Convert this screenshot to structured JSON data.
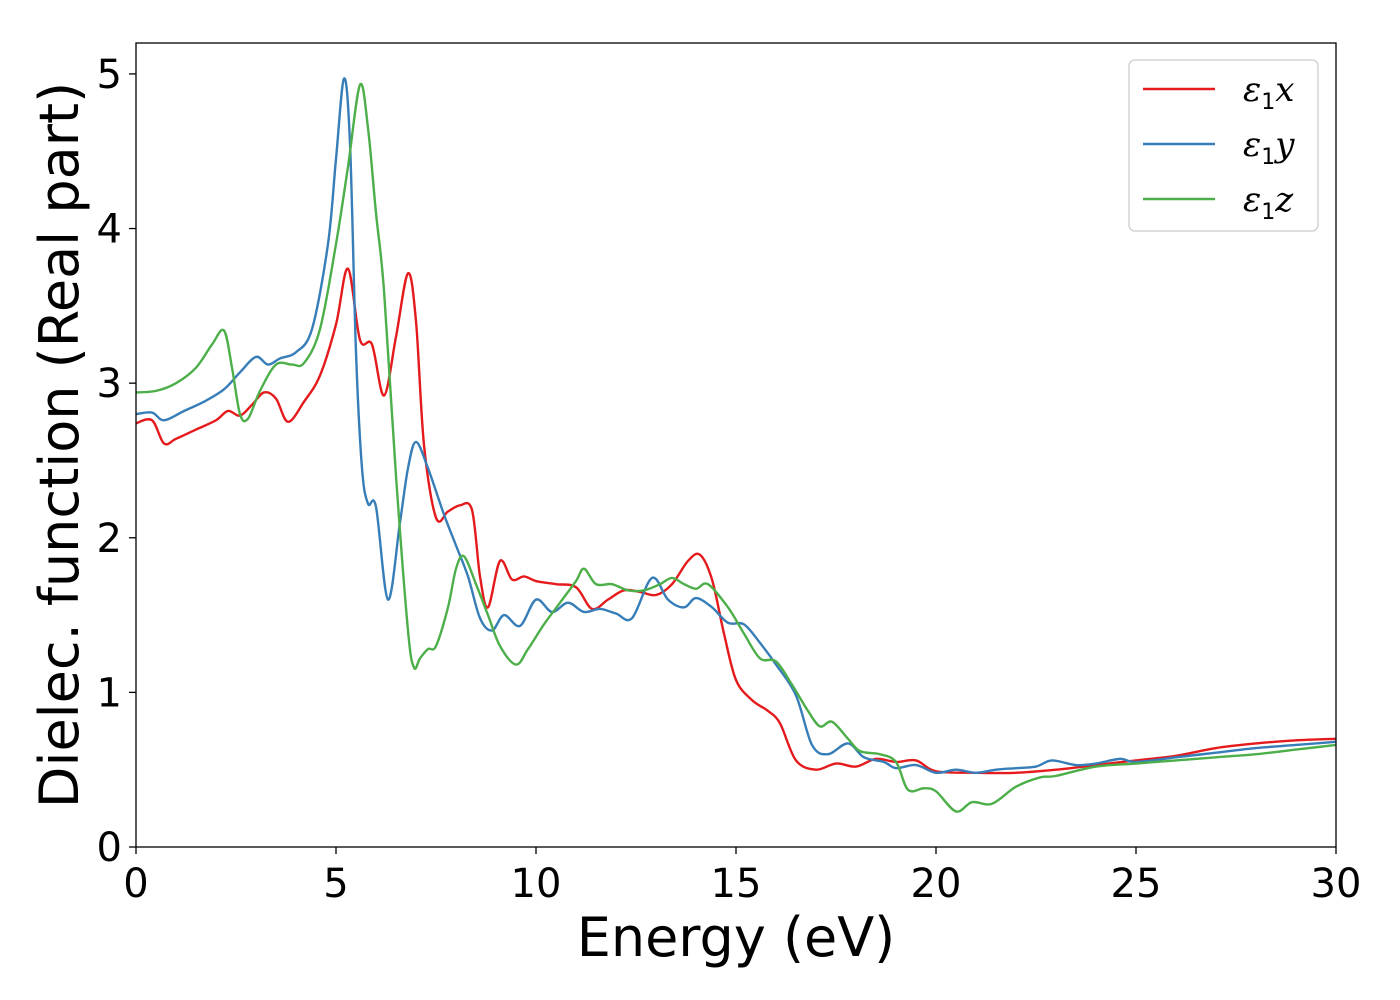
{
  "chart_data": {
    "type": "line",
    "title": "",
    "xlabel": "Energy (eV)",
    "ylabel": "Dielec. function (Real part)",
    "xlim": [
      0,
      30
    ],
    "ylim": [
      0,
      5.2
    ],
    "xticks": [
      0,
      5,
      10,
      15,
      20,
      25,
      30
    ],
    "yticks": [
      0,
      1,
      2,
      3,
      4,
      5
    ],
    "grid": false,
    "legend_position": "top-right",
    "series": [
      {
        "name": "ε1x",
        "legend_main": "ε",
        "legend_sub": "1",
        "legend_tail": "x",
        "color": "#e41a1c",
        "points": [
          [
            0,
            2.74
          ],
          [
            0.4,
            2.76
          ],
          [
            0.7,
            2.61
          ],
          [
            1.0,
            2.64
          ],
          [
            1.5,
            2.7
          ],
          [
            2.0,
            2.76
          ],
          [
            2.3,
            2.82
          ],
          [
            2.6,
            2.79
          ],
          [
            2.9,
            2.86
          ],
          [
            3.2,
            2.94
          ],
          [
            3.5,
            2.9
          ],
          [
            3.8,
            2.75
          ],
          [
            4.2,
            2.88
          ],
          [
            4.6,
            3.05
          ],
          [
            5.0,
            3.38
          ],
          [
            5.3,
            3.74
          ],
          [
            5.6,
            3.28
          ],
          [
            5.9,
            3.25
          ],
          [
            6.2,
            2.92
          ],
          [
            6.5,
            3.3
          ],
          [
            6.8,
            3.71
          ],
          [
            7.0,
            3.4
          ],
          [
            7.2,
            2.6
          ],
          [
            7.5,
            2.13
          ],
          [
            7.8,
            2.17
          ],
          [
            8.1,
            2.21
          ],
          [
            8.4,
            2.18
          ],
          [
            8.6,
            1.75
          ],
          [
            8.8,
            1.55
          ],
          [
            9.1,
            1.85
          ],
          [
            9.4,
            1.73
          ],
          [
            9.7,
            1.75
          ],
          [
            10.0,
            1.72
          ],
          [
            10.5,
            1.7
          ],
          [
            11.0,
            1.68
          ],
          [
            11.4,
            1.54
          ],
          [
            11.8,
            1.6
          ],
          [
            12.2,
            1.66
          ],
          [
            12.6,
            1.65
          ],
          [
            13.0,
            1.63
          ],
          [
            13.4,
            1.7
          ],
          [
            13.8,
            1.85
          ],
          [
            14.1,
            1.89
          ],
          [
            14.4,
            1.73
          ],
          [
            14.7,
            1.38
          ],
          [
            15.0,
            1.08
          ],
          [
            15.4,
            0.95
          ],
          [
            15.8,
            0.88
          ],
          [
            16.1,
            0.8
          ],
          [
            16.5,
            0.56
          ],
          [
            17.0,
            0.5
          ],
          [
            17.5,
            0.54
          ],
          [
            18.0,
            0.52
          ],
          [
            18.5,
            0.57
          ],
          [
            19.0,
            0.55
          ],
          [
            19.5,
            0.56
          ],
          [
            20.0,
            0.49
          ],
          [
            21.0,
            0.48
          ],
          [
            22.0,
            0.48
          ],
          [
            23.0,
            0.5
          ],
          [
            24.0,
            0.53
          ],
          [
            25.0,
            0.56
          ],
          [
            26.0,
            0.59
          ],
          [
            27.0,
            0.64
          ],
          [
            28.0,
            0.67
          ],
          [
            29.0,
            0.69
          ],
          [
            30.0,
            0.7
          ]
        ]
      },
      {
        "name": "ε1y",
        "legend_main": "ε",
        "legend_sub": "1",
        "legend_tail": "y",
        "color": "#377eb8",
        "points": [
          [
            0,
            2.8
          ],
          [
            0.4,
            2.81
          ],
          [
            0.7,
            2.76
          ],
          [
            1.2,
            2.82
          ],
          [
            1.7,
            2.88
          ],
          [
            2.2,
            2.96
          ],
          [
            2.6,
            3.07
          ],
          [
            3.0,
            3.17
          ],
          [
            3.3,
            3.12
          ],
          [
            3.6,
            3.16
          ],
          [
            4.0,
            3.2
          ],
          [
            4.4,
            3.35
          ],
          [
            4.8,
            3.9
          ],
          [
            5.0,
            4.45
          ],
          [
            5.2,
            4.97
          ],
          [
            5.35,
            4.55
          ],
          [
            5.5,
            3.2
          ],
          [
            5.65,
            2.45
          ],
          [
            5.8,
            2.22
          ],
          [
            6.0,
            2.2
          ],
          [
            6.3,
            1.6
          ],
          [
            6.6,
            2.1
          ],
          [
            6.8,
            2.45
          ],
          [
            7.0,
            2.62
          ],
          [
            7.3,
            2.45
          ],
          [
            7.7,
            2.15
          ],
          [
            8.0,
            1.95
          ],
          [
            8.3,
            1.75
          ],
          [
            8.6,
            1.48
          ],
          [
            8.9,
            1.4
          ],
          [
            9.2,
            1.5
          ],
          [
            9.6,
            1.43
          ],
          [
            10.0,
            1.6
          ],
          [
            10.4,
            1.52
          ],
          [
            10.8,
            1.58
          ],
          [
            11.2,
            1.52
          ],
          [
            11.6,
            1.54
          ],
          [
            12.0,
            1.51
          ],
          [
            12.4,
            1.48
          ],
          [
            12.9,
            1.74
          ],
          [
            13.3,
            1.6
          ],
          [
            13.7,
            1.55
          ],
          [
            14.0,
            1.61
          ],
          [
            14.4,
            1.55
          ],
          [
            14.8,
            1.45
          ],
          [
            15.2,
            1.44
          ],
          [
            15.6,
            1.32
          ],
          [
            16.0,
            1.18
          ],
          [
            16.5,
            0.98
          ],
          [
            16.9,
            0.66
          ],
          [
            17.3,
            0.6
          ],
          [
            17.8,
            0.67
          ],
          [
            18.2,
            0.58
          ],
          [
            18.7,
            0.55
          ],
          [
            19.0,
            0.51
          ],
          [
            19.5,
            0.53
          ],
          [
            20.0,
            0.48
          ],
          [
            20.5,
            0.5
          ],
          [
            21.0,
            0.48
          ],
          [
            21.5,
            0.5
          ],
          [
            22.0,
            0.51
          ],
          [
            22.5,
            0.52
          ],
          [
            22.9,
            0.56
          ],
          [
            23.5,
            0.53
          ],
          [
            24.0,
            0.54
          ],
          [
            24.6,
            0.57
          ],
          [
            25.0,
            0.55
          ],
          [
            26.0,
            0.58
          ],
          [
            27.0,
            0.61
          ],
          [
            28.0,
            0.64
          ],
          [
            29.0,
            0.66
          ],
          [
            30.0,
            0.68
          ]
        ]
      },
      {
        "name": "ε1z",
        "legend_main": "ε",
        "legend_sub": "1",
        "legend_tail": "z",
        "color": "#4daf4a",
        "points": [
          [
            0,
            2.94
          ],
          [
            0.5,
            2.95
          ],
          [
            1.0,
            3.0
          ],
          [
            1.5,
            3.1
          ],
          [
            1.9,
            3.25
          ],
          [
            2.2,
            3.34
          ],
          [
            2.4,
            3.1
          ],
          [
            2.6,
            2.8
          ],
          [
            2.8,
            2.77
          ],
          [
            3.1,
            2.95
          ],
          [
            3.5,
            3.12
          ],
          [
            3.9,
            3.12
          ],
          [
            4.2,
            3.13
          ],
          [
            4.6,
            3.35
          ],
          [
            5.0,
            3.9
          ],
          [
            5.3,
            4.4
          ],
          [
            5.6,
            4.93
          ],
          [
            5.8,
            4.65
          ],
          [
            6.0,
            4.1
          ],
          [
            6.2,
            3.6
          ],
          [
            6.5,
            2.4
          ],
          [
            6.8,
            1.4
          ],
          [
            6.95,
            1.16
          ],
          [
            7.1,
            1.22
          ],
          [
            7.3,
            1.28
          ],
          [
            7.5,
            1.3
          ],
          [
            7.8,
            1.55
          ],
          [
            8.0,
            1.8
          ],
          [
            8.2,
            1.88
          ],
          [
            8.5,
            1.7
          ],
          [
            8.8,
            1.5
          ],
          [
            9.1,
            1.3
          ],
          [
            9.5,
            1.18
          ],
          [
            9.8,
            1.28
          ],
          [
            10.2,
            1.44
          ],
          [
            10.6,
            1.58
          ],
          [
            11.0,
            1.72
          ],
          [
            11.2,
            1.8
          ],
          [
            11.5,
            1.7
          ],
          [
            11.9,
            1.7
          ],
          [
            12.3,
            1.66
          ],
          [
            12.7,
            1.66
          ],
          [
            13.1,
            1.7
          ],
          [
            13.4,
            1.74
          ],
          [
            13.7,
            1.7
          ],
          [
            14.0,
            1.67
          ],
          [
            14.3,
            1.7
          ],
          [
            14.8,
            1.55
          ],
          [
            15.2,
            1.38
          ],
          [
            15.6,
            1.22
          ],
          [
            16.0,
            1.2
          ],
          [
            16.4,
            1.05
          ],
          [
            16.8,
            0.88
          ],
          [
            17.1,
            0.78
          ],
          [
            17.4,
            0.81
          ],
          [
            17.8,
            0.7
          ],
          [
            18.1,
            0.62
          ],
          [
            18.6,
            0.6
          ],
          [
            19.0,
            0.55
          ],
          [
            19.3,
            0.37
          ],
          [
            19.7,
            0.38
          ],
          [
            20.0,
            0.36
          ],
          [
            20.5,
            0.23
          ],
          [
            20.9,
            0.29
          ],
          [
            21.4,
            0.28
          ],
          [
            22.0,
            0.39
          ],
          [
            22.6,
            0.45
          ],
          [
            23.0,
            0.46
          ],
          [
            24.0,
            0.52
          ],
          [
            25.0,
            0.54
          ],
          [
            26.0,
            0.56
          ],
          [
            27.0,
            0.58
          ],
          [
            28.0,
            0.6
          ],
          [
            29.0,
            0.63
          ],
          [
            30.0,
            0.66
          ]
        ]
      }
    ]
  }
}
